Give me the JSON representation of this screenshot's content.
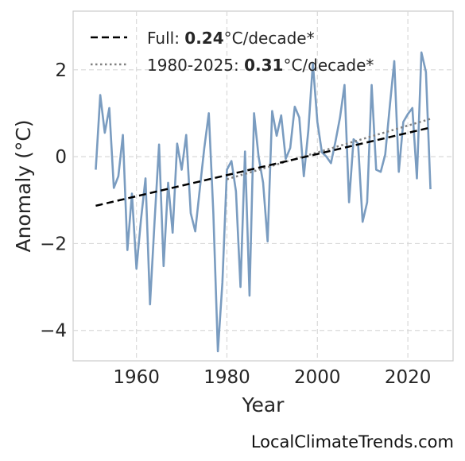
{
  "chart_data": {
    "type": "line",
    "xlabel": "Year",
    "ylabel": "Anomaly (°C)",
    "xlim": [
      1946,
      2030
    ],
    "ylim": [
      -4.7,
      3.35
    ],
    "xticks": [
      1960,
      1980,
      2000,
      2020
    ],
    "yticks": [
      -4,
      -2,
      0,
      2
    ],
    "ytick_labels": [
      "−4",
      "−2",
      "0",
      "2"
    ],
    "grid": true,
    "legend_position": "top-left",
    "series": [
      {
        "color": "#7a9cc0",
        "x": [
          1951,
          1952,
          1953,
          1954,
          1955,
          1956,
          1957,
          1958,
          1959,
          1960,
          1961,
          1962,
          1963,
          1964,
          1965,
          1966,
          1967,
          1968,
          1969,
          1970,
          1971,
          1972,
          1973,
          1974,
          1975,
          1976,
          1977,
          1978,
          1979,
          1980,
          1981,
          1982,
          1983,
          1984,
          1985,
          1986,
          1987,
          1988,
          1989,
          1990,
          1991,
          1992,
          1993,
          1994,
          1995,
          1996,
          1997,
          1998,
          1999,
          2000,
          2001,
          2002,
          2003,
          2004,
          2005,
          2006,
          2007,
          2008,
          2009,
          2010,
          2011,
          2012,
          2013,
          2014,
          2015,
          2016,
          2017,
          2018,
          2019,
          2020,
          2021,
          2022,
          2023,
          2024,
          2025
        ],
        "values": [
          -0.3,
          1.42,
          0.55,
          1.12,
          -0.72,
          -0.45,
          0.5,
          -2.15,
          -0.85,
          -2.58,
          -1.45,
          -0.5,
          -3.4,
          -1.5,
          0.28,
          -2.52,
          -0.6,
          -1.75,
          0.3,
          -0.3,
          0.5,
          -1.3,
          -1.72,
          -0.75,
          0.2,
          1.0,
          -1.3,
          -4.48,
          -2.9,
          -0.3,
          -0.1,
          -0.8,
          -3.0,
          0.12,
          -3.2,
          1.0,
          0.0,
          -0.6,
          -1.95,
          1.05,
          0.48,
          0.95,
          -0.05,
          0.2,
          1.15,
          0.9,
          -0.45,
          0.6,
          2.15,
          0.8,
          0.1,
          0.0,
          -0.15,
          0.35,
          0.9,
          1.65,
          -1.05,
          0.4,
          0.3,
          -1.5,
          -1.05,
          1.65,
          -0.3,
          -0.35,
          0.05,
          1.15,
          2.2,
          -0.35,
          0.8,
          0.98,
          1.12,
          -0.5,
          2.4,
          1.95,
          -0.75
        ]
      }
    ],
    "trend_lines": [
      {
        "style": "dashed",
        "color": "#000000",
        "x": [
          1951,
          2025
        ],
        "values": [
          -1.13,
          0.67
        ],
        "label_prefix": "Full: ",
        "label_bold": "0.24",
        "label_suffix": "°C/decade*"
      },
      {
        "style": "dotted",
        "color": "#808080",
        "x": [
          1980,
          2025
        ],
        "values": [
          -0.52,
          0.87
        ],
        "label_prefix": "1980-2025: ",
        "label_bold": "0.31",
        "label_suffix": "°C/decade*"
      }
    ]
  },
  "credit": "LocalClimateTrends.com"
}
